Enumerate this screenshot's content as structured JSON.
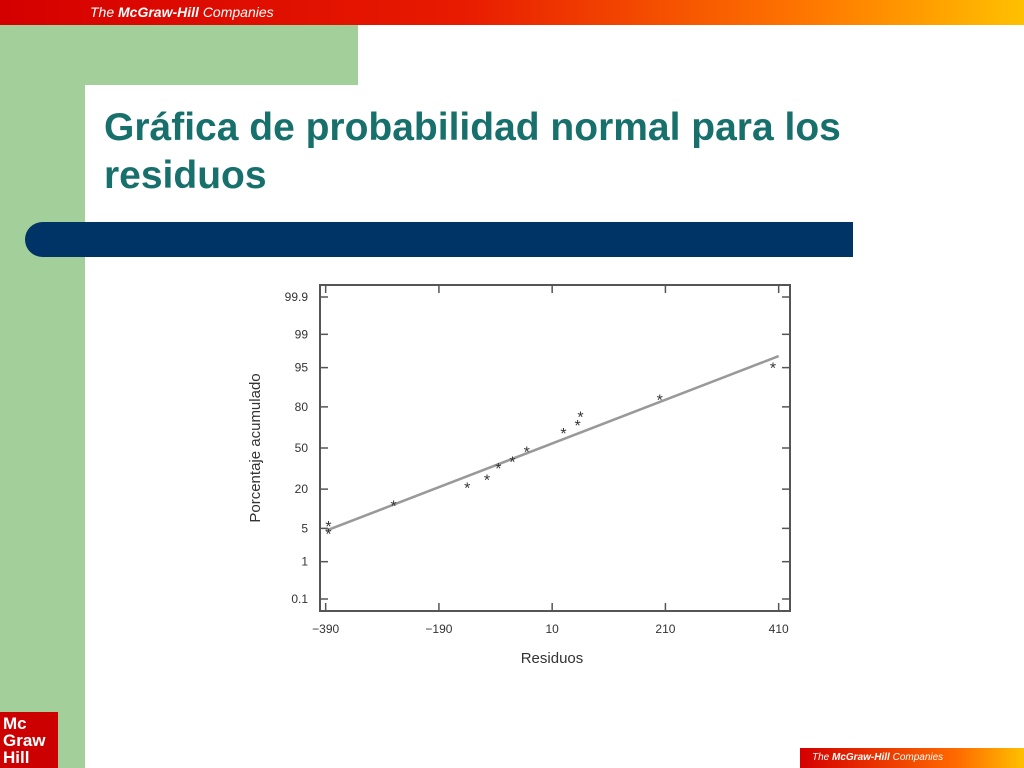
{
  "header": {
    "brand_the": "The",
    "brand_name": "McGraw-Hill",
    "brand_companies": "Companies"
  },
  "slide": {
    "title": "Gráfica de probabilidad normal para los residuos"
  },
  "logo": {
    "line1": "Mc",
    "line2": "Graw",
    "line3": "Hill"
  },
  "footer": {
    "brand_the": "The",
    "brand_name": "McGraw-Hill",
    "brand_companies": "Companies"
  },
  "colors": {
    "title": "#17706b",
    "band": "#a3cf9b",
    "bar": "#003366",
    "series": "#999999"
  },
  "chart_data": {
    "type": "scatter",
    "title": "",
    "xlabel": "Residuos",
    "ylabel": "Porcentaje acumulado",
    "xlim": [
      -400,
      430
    ],
    "x_ticks": [
      -390,
      -190,
      10,
      210,
      410
    ],
    "y_scale": "normal-probability",
    "y_ticks": [
      0.1,
      1,
      5,
      20,
      50,
      80,
      95,
      99,
      99.9
    ],
    "y_tick_labels": [
      "0.1",
      "1",
      "5",
      "20",
      "50",
      "80",
      "95",
      "99",
      "99.9"
    ],
    "grid": false,
    "points": [
      {
        "x": -385,
        "y": 5.5
      },
      {
        "x": -385,
        "y": 4
      },
      {
        "x": -270,
        "y": 12
      },
      {
        "x": -140,
        "y": 21
      },
      {
        "x": -105,
        "y": 26
      },
      {
        "x": -85,
        "y": 34
      },
      {
        "x": -60,
        "y": 39
      },
      {
        "x": -35,
        "y": 47
      },
      {
        "x": 30,
        "y": 62
      },
      {
        "x": 55,
        "y": 68
      },
      {
        "x": 60,
        "y": 74
      },
      {
        "x": 200,
        "y": 84
      },
      {
        "x": 400,
        "y": 95
      }
    ],
    "fit_line": [
      {
        "x": -390,
        "y": 4.5
      },
      {
        "x": 410,
        "y": 97
      }
    ]
  }
}
